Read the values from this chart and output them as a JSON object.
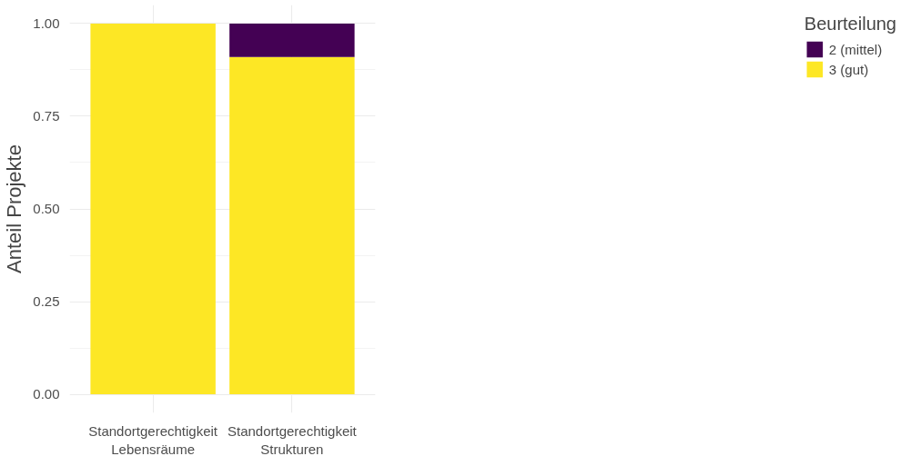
{
  "chart_data": {
    "type": "bar",
    "stacked": true,
    "ylabel": "Anteil Projekte",
    "legend_title": "Beurteilung",
    "categories": [
      "Standortgerechtigkeit\nLebensräume",
      "Standortgerechtigkeit\nStrukturen"
    ],
    "series": [
      {
        "name": "3 (gut)",
        "color": "#fde725",
        "values": [
          1.0,
          0.91
        ]
      },
      {
        "name": "2 (mittel)",
        "color": "#440154",
        "values": [
          null,
          0.09
        ]
      }
    ],
    "ylim": [
      -0.05,
      1.05
    ],
    "yticks": [
      {
        "value": 0,
        "label": "0.00"
      },
      {
        "value": 0.25,
        "label": "0.25"
      },
      {
        "value": 0.5,
        "label": "0.50"
      },
      {
        "value": 0.75,
        "label": "0.75"
      },
      {
        "value": 1,
        "label": "1.00"
      }
    ],
    "grid": true,
    "legend": "right"
  }
}
